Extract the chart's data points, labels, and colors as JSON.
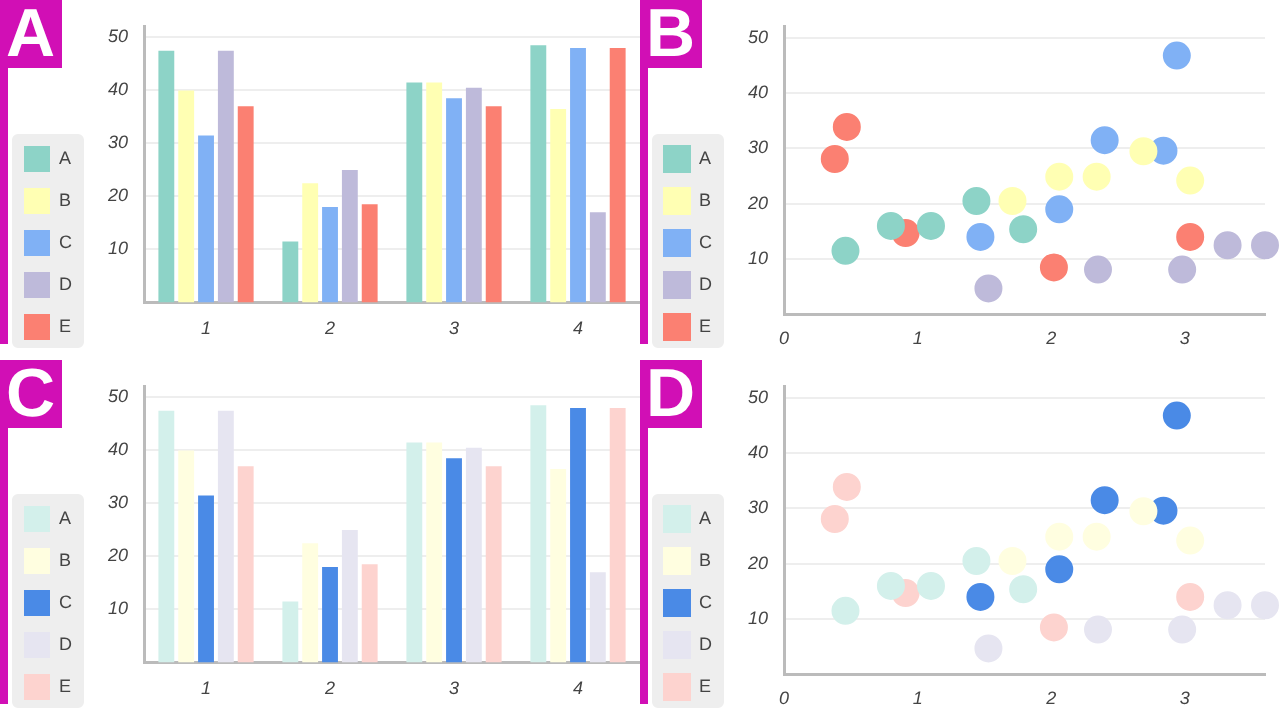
{
  "chart_data": [
    {
      "type": "bar",
      "title": "A",
      "categories": [
        "1",
        "2",
        "3",
        "4"
      ],
      "series": [
        {
          "name": "A",
          "color": "#8dd3c7",
          "values": [
            47.5,
            11.5,
            41.5,
            48.5
          ]
        },
        {
          "name": "B",
          "color": "#ffffb3",
          "values": [
            40,
            22.5,
            41.5,
            36.5
          ]
        },
        {
          "name": "C",
          "color": "#80b1f5",
          "values": [
            31.5,
            18,
            38.5,
            48
          ]
        },
        {
          "name": "D",
          "color": "#bebada",
          "values": [
            47.5,
            25,
            40.5,
            17
          ]
        },
        {
          "name": "E",
          "color": "#fb8072",
          "values": [
            37,
            18.5,
            37,
            48
          ]
        }
      ],
      "ylim": [
        0,
        52
      ],
      "yticks": [
        10,
        20,
        30,
        40,
        50
      ],
      "grid": "y",
      "legend": "bottom left"
    },
    {
      "type": "scatter",
      "title": "B",
      "series": [
        {
          "name": "A",
          "color": "#8dd3c7",
          "x": [
            0.46,
            0.8,
            1.1,
            1.44,
            1.79
          ],
          "values": [
            11.5,
            16,
            16,
            20.5,
            15.4
          ]
        },
        {
          "name": "B",
          "color": "#ffffb3",
          "x": [
            1.71,
            2.06,
            2.34,
            2.69,
            3.04
          ],
          "values": [
            20.5,
            24.9,
            24.9,
            29.5,
            24.2
          ]
        },
        {
          "name": "C",
          "color": "#80b1f5",
          "x": [
            1.47,
            2.06,
            2.4,
            2.84,
            2.94
          ],
          "values": [
            14,
            19,
            31.5,
            29.6,
            46.8
          ]
        },
        {
          "name": "D",
          "color": "#bebada",
          "x": [
            1.53,
            2.35,
            2.98,
            3.32,
            3.6
          ],
          "values": [
            4.7,
            8.1,
            8.1,
            12.5,
            12.5
          ]
        },
        {
          "name": "E",
          "color": "#fb8072",
          "x": [
            0.38,
            0.47,
            0.91,
            2.02,
            3.04
          ],
          "values": [
            28.1,
            33.9,
            14.7,
            8.5,
            14
          ]
        }
      ],
      "xlim": [
        0,
        3.6
      ],
      "xticks": [
        0,
        1,
        2,
        3
      ],
      "ylim": [
        0,
        52
      ],
      "yticks": [
        10,
        20,
        30,
        40,
        50
      ],
      "grid": "y",
      "legend": "bottom left",
      "marker": "circle"
    },
    {
      "type": "bar",
      "title": "C",
      "categories": [
        "1",
        "2",
        "3",
        "4"
      ],
      "series": [
        {
          "name": "A",
          "color": "#d3f0eb",
          "values": [
            47.5,
            11.5,
            41.5,
            48.5
          ]
        },
        {
          "name": "B",
          "color": "#fffee0",
          "values": [
            40,
            22.5,
            41.5,
            36.5
          ]
        },
        {
          "name": "C",
          "color": "#4a8ae6",
          "values": [
            31.5,
            18,
            38.5,
            48
          ]
        },
        {
          "name": "D",
          "color": "#e6e5f1",
          "values": [
            47.5,
            25,
            40.5,
            17
          ]
        },
        {
          "name": "E",
          "color": "#fdd3cf",
          "values": [
            37,
            18.5,
            37,
            48
          ]
        }
      ],
      "ylim": [
        0,
        52
      ],
      "yticks": [
        10,
        20,
        30,
        40,
        50
      ],
      "grid": "y",
      "legend": "bottom left"
    },
    {
      "type": "scatter",
      "title": "D",
      "series": [
        {
          "name": "A",
          "color": "#d3f0eb",
          "x": [
            0.46,
            0.8,
            1.1,
            1.44,
            1.79
          ],
          "values": [
            11.5,
            16,
            16,
            20.5,
            15.4
          ]
        },
        {
          "name": "B",
          "color": "#fffee0",
          "x": [
            1.71,
            2.06,
            2.34,
            2.69,
            3.04
          ],
          "values": [
            20.5,
            24.9,
            24.9,
            29.5,
            24.2
          ]
        },
        {
          "name": "C",
          "color": "#4a8ae6",
          "x": [
            1.47,
            2.06,
            2.4,
            2.84,
            2.94
          ],
          "values": [
            14,
            19,
            31.5,
            29.6,
            46.8
          ]
        },
        {
          "name": "D",
          "color": "#e6e5f1",
          "x": [
            1.53,
            2.35,
            2.98,
            3.32,
            3.6
          ],
          "values": [
            4.7,
            8.1,
            8.1,
            12.5,
            12.5
          ]
        },
        {
          "name": "E",
          "color": "#fdd3cf",
          "x": [
            0.38,
            0.47,
            0.91,
            2.02,
            3.04
          ],
          "values": [
            28.1,
            33.9,
            14.7,
            8.5,
            14
          ]
        }
      ],
      "xlim": [
        0,
        3.6
      ],
      "xticks": [
        0,
        1,
        2,
        3
      ],
      "ylim": [
        0,
        52
      ],
      "yticks": [
        10,
        20,
        30,
        40,
        50
      ],
      "grid": "y",
      "legend": "bottom left",
      "marker": "circle"
    }
  ]
}
